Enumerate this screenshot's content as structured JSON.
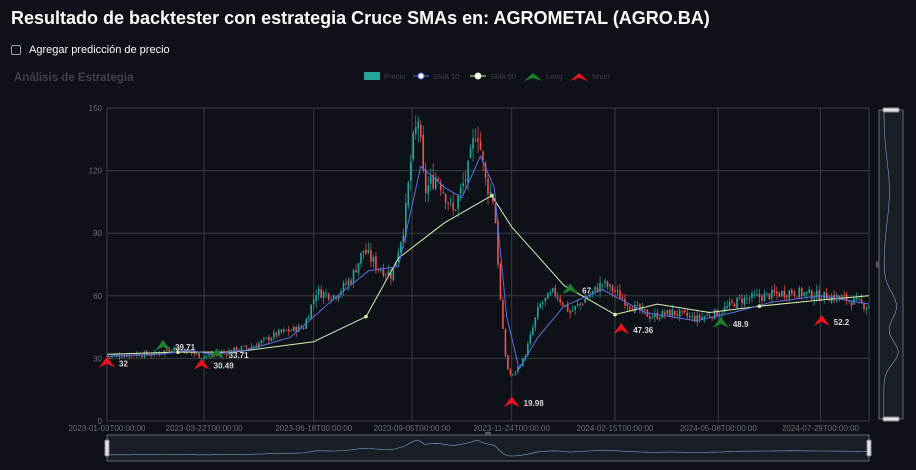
{
  "page": {
    "title": "Resultado de backtester con estrategia Cruce SMAs en: AGROMETAL (AGRO.BA)",
    "checkbox_label": "Agregar predicción de precio"
  },
  "colors": {
    "background": "#0e1117",
    "up": "#26a69a",
    "down": "#ef5350",
    "sma10": "#5b6ee1",
    "sma50": "#d4f1b0",
    "long": "#1b7f2b",
    "short": "#e8121f",
    "grid": "#3a3d44"
  },
  "chart_data": {
    "type": "candlestick",
    "title": "Análisis de Estrategia",
    "legend": [
      "Precio",
      "SMA 10",
      "SMA 50",
      "Long",
      "Short"
    ],
    "legend_position": "top-center",
    "x_ticks": [
      "2023-01-03T00:00:00",
      "2023-03-22T00:00:00",
      "2023-06-18T00:00:00",
      "2023-09-05T00:00:00",
      "2023-11-24T00:00:00",
      "2024-02-15T00:00:00",
      "2024-05-08T00:00:00",
      "2024-07-29T00:00:00"
    ],
    "x_range": [
      "2023-01-03",
      "2024-09-06"
    ],
    "y_ticks": [
      0,
      30,
      60,
      90,
      120,
      150
    ],
    "ylim": [
      0,
      150
    ],
    "grid": true,
    "price_path": [
      [
        "2023-01-03",
        31
      ],
      [
        "2023-01-25",
        32
      ],
      [
        "2023-02-10",
        32
      ],
      [
        "2023-02-25",
        35
      ],
      [
        "2023-03-05",
        34
      ],
      [
        "2023-03-20",
        31
      ],
      [
        "2023-04-01",
        32
      ],
      [
        "2023-04-15",
        34
      ],
      [
        "2023-05-01",
        36
      ],
      [
        "2023-05-20",
        42
      ],
      [
        "2023-06-10",
        45
      ],
      [
        "2023-06-20",
        62
      ],
      [
        "2023-07-05",
        60
      ],
      [
        "2023-07-18",
        68
      ],
      [
        "2023-07-28",
        82
      ],
      [
        "2023-08-08",
        74
      ],
      [
        "2023-08-20",
        70
      ],
      [
        "2023-08-30",
        95
      ],
      [
        "2023-09-05",
        130
      ],
      [
        "2023-09-10",
        145
      ],
      [
        "2023-09-15",
        110
      ],
      [
        "2023-09-25",
        118
      ],
      [
        "2023-10-08",
        100
      ],
      [
        "2023-10-20",
        120
      ],
      [
        "2023-10-27",
        142
      ],
      [
        "2023-11-03",
        115
      ],
      [
        "2023-11-10",
        105
      ],
      [
        "2023-11-16",
        48
      ],
      [
        "2023-11-20",
        26
      ],
      [
        "2023-11-24",
        21
      ],
      [
        "2023-12-04",
        30
      ],
      [
        "2023-12-16",
        55
      ],
      [
        "2023-12-28",
        62
      ],
      [
        "2024-01-10",
        52
      ],
      [
        "2024-01-25",
        60
      ],
      [
        "2024-02-05",
        66
      ],
      [
        "2024-02-15",
        62
      ],
      [
        "2024-02-28",
        55
      ],
      [
        "2024-03-15",
        50
      ],
      [
        "2024-04-01",
        52
      ],
      [
        "2024-04-20",
        49
      ],
      [
        "2024-05-08",
        52
      ],
      [
        "2024-05-25",
        58
      ],
      [
        "2024-06-15",
        60
      ],
      [
        "2024-07-05",
        62
      ],
      [
        "2024-07-29",
        60
      ],
      [
        "2024-08-15",
        59
      ],
      [
        "2024-09-06",
        55
      ]
    ],
    "sma10": [
      [
        "2023-01-03",
        31
      ],
      [
        "2023-02-15",
        32
      ],
      [
        "2023-03-10",
        34
      ],
      [
        "2023-03-28",
        32
      ],
      [
        "2023-04-25",
        34
      ],
      [
        "2023-05-30",
        40
      ],
      [
        "2023-06-18",
        50
      ],
      [
        "2023-07-05",
        59
      ],
      [
        "2023-08-01",
        72
      ],
      [
        "2023-08-25",
        74
      ],
      [
        "2023-09-12",
        122
      ],
      [
        "2023-10-01",
        112
      ],
      [
        "2023-10-15",
        107
      ],
      [
        "2023-10-30",
        127
      ],
      [
        "2023-11-10",
        112
      ],
      [
        "2023-11-20",
        50
      ],
      [
        "2023-11-30",
        25
      ],
      [
        "2023-12-15",
        40
      ],
      [
        "2024-01-05",
        55
      ],
      [
        "2024-02-05",
        63
      ],
      [
        "2024-03-10",
        52
      ],
      [
        "2024-04-20",
        48
      ],
      [
        "2024-05-20",
        52
      ],
      [
        "2024-06-20",
        57
      ],
      [
        "2024-07-29",
        60
      ],
      [
        "2024-09-06",
        56
      ]
    ],
    "sma50": [
      [
        "2023-01-03",
        32
      ],
      [
        "2023-03-01",
        33
      ],
      [
        "2023-04-15",
        33
      ],
      [
        "2023-06-18",
        38
      ],
      [
        "2023-07-30",
        50
      ],
      [
        "2023-08-25",
        78
      ],
      [
        "2023-10-01",
        95
      ],
      [
        "2023-11-08",
        108
      ],
      [
        "2023-11-24",
        93
      ],
      [
        "2024-01-05",
        65
      ],
      [
        "2024-02-15",
        51
      ],
      [
        "2024-03-20",
        56
      ],
      [
        "2024-05-01",
        52
      ],
      [
        "2024-06-10",
        55
      ],
      [
        "2024-07-29",
        58
      ],
      [
        "2024-09-06",
        60
      ]
    ],
    "signals": [
      {
        "type": "short",
        "x": "2023-01-03",
        "y": 28,
        "label": "32"
      },
      {
        "type": "long",
        "x": "2023-02-17",
        "y": 36,
        "label": "39.71"
      },
      {
        "type": "short",
        "x": "2023-03-20",
        "y": 27,
        "label": "30.49"
      },
      {
        "type": "long",
        "x": "2023-04-01",
        "y": 32,
        "label": "33.71"
      },
      {
        "type": "short",
        "x": "2023-11-24",
        "y": 9,
        "label": "19.98"
      },
      {
        "type": "long",
        "x": "2024-01-10",
        "y": 63,
        "label": "67"
      },
      {
        "type": "short",
        "x": "2024-02-20",
        "y": 44,
        "label": "47.36"
      },
      {
        "type": "long",
        "x": "2024-05-10",
        "y": 47,
        "label": "48.9"
      },
      {
        "type": "short",
        "x": "2024-07-30",
        "y": 48,
        "label": "52.2"
      }
    ]
  }
}
